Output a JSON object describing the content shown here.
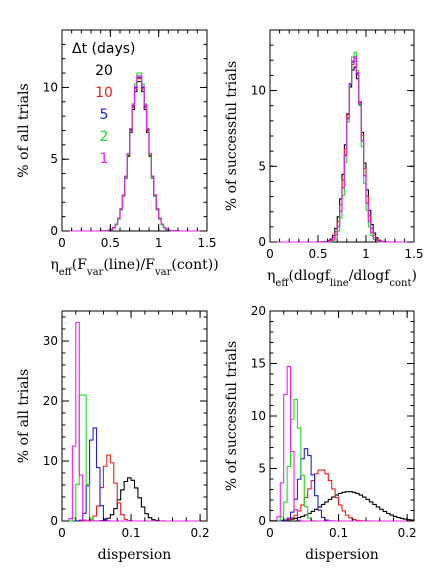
{
  "colors": {
    "20": "#000000",
    "10": "#ee1c1c",
    "5": "#2222dd",
    "2": "#22dd22",
    "1": "#ee22ee"
  },
  "legend": {
    "title": "Δt (days)",
    "entries": [
      {
        "label": "20",
        "series": "20"
      },
      {
        "label": "10",
        "series": "10"
      },
      {
        "label": "5",
        "series": "5"
      },
      {
        "label": "2",
        "series": "2"
      },
      {
        "label": "1",
        "series": "1"
      }
    ]
  },
  "chart_data": [
    {
      "type": "histogram",
      "panel": "top-left",
      "xlabel": "η_eff(F_var(line)/F_var(cont))",
      "ylabel": "% of all trials",
      "xlim": [
        0,
        1.5
      ],
      "ylim": [
        0,
        14
      ],
      "xticks": [
        0,
        0.5,
        1,
        1.5
      ],
      "xtick_labels": [
        "0",
        "0.5",
        "1",
        "1.5"
      ],
      "yticks": [
        0,
        5,
        10
      ],
      "ytick_labels": [
        "0",
        "5",
        "10"
      ],
      "bin_width": 0.025,
      "series": [
        {
          "name": "20",
          "center": 0.8,
          "sigma": 0.095,
          "peak": 10.5
        },
        {
          "name": "10",
          "center": 0.8,
          "sigma": 0.095,
          "peak": 10.7
        },
        {
          "name": "5",
          "center": 0.8,
          "sigma": 0.095,
          "peak": 10.8
        },
        {
          "name": "2",
          "center": 0.8,
          "sigma": 0.093,
          "peak": 11.1
        },
        {
          "name": "1",
          "center": 0.8,
          "sigma": 0.095,
          "peak": 10.9
        }
      ]
    },
    {
      "type": "histogram",
      "panel": "top-right",
      "xlabel": "η_eff(dlogf_line/dlogf_cont)",
      "ylabel": "% of successful trials",
      "xlim": [
        0,
        1.5
      ],
      "ylim": [
        0,
        14
      ],
      "xticks": [
        0,
        0.5,
        1,
        1.5
      ],
      "xtick_labels": [
        "0",
        "0.5",
        "1",
        "1.5"
      ],
      "yticks": [
        0,
        5,
        10
      ],
      "ytick_labels": [
        "0",
        "5",
        "10"
      ],
      "bin_width": 0.025,
      "series": [
        {
          "name": "20",
          "center": 0.88,
          "sigma": 0.085,
          "peak": 11.6
        },
        {
          "name": "10",
          "center": 0.88,
          "sigma": 0.08,
          "peak": 12.0
        },
        {
          "name": "5",
          "center": 0.88,
          "sigma": 0.075,
          "peak": 12.2
        },
        {
          "name": "2",
          "center": 0.88,
          "sigma": 0.07,
          "peak": 12.6
        },
        {
          "name": "1",
          "center": 0.88,
          "sigma": 0.075,
          "peak": 12.3
        }
      ]
    },
    {
      "type": "histogram",
      "panel": "bottom-left",
      "xlabel": "dispersion",
      "ylabel": "% of all trials",
      "xlim": [
        0,
        0.21
      ],
      "ylim": [
        0,
        35
      ],
      "xticks": [
        0,
        0.1,
        0.2
      ],
      "xtick_labels": [
        "0",
        "0.1",
        "0.2"
      ],
      "yticks": [
        0,
        10,
        20,
        30
      ],
      "ytick_labels": [
        "0",
        "10",
        "20",
        "30"
      ],
      "bin_width": 0.005,
      "series": [
        {
          "name": "20",
          "center": 0.098,
          "sigma": 0.013,
          "peak": 7.2
        },
        {
          "name": "10",
          "center": 0.068,
          "sigma": 0.009,
          "peak": 11.0
        },
        {
          "name": "5",
          "center": 0.046,
          "sigma": 0.006,
          "peak": 16.0
        },
        {
          "name": "2",
          "center": 0.03,
          "sigma": 0.0045,
          "peak": 24.5
        },
        {
          "name": "1",
          "center": 0.022,
          "sigma": 0.0032,
          "peak": 33.5
        }
      ]
    },
    {
      "type": "histogram",
      "panel": "bottom-right",
      "xlabel": "dispersion",
      "ylabel": "% of successful trials",
      "xlim": [
        0,
        0.21
      ],
      "ylim": [
        0,
        20
      ],
      "xticks": [
        0,
        0.1,
        0.2
      ],
      "xtick_labels": [
        "0",
        "0.1",
        "0.2"
      ],
      "yticks": [
        0,
        5,
        10,
        15,
        20
      ],
      "ytick_labels": [
        "0",
        "5",
        "10",
        "15",
        "20"
      ],
      "bin_width": 0.005,
      "series": [
        {
          "name": "20",
          "center": 0.115,
          "sigma": 0.035,
          "peak": 2.8
        },
        {
          "name": "10",
          "center": 0.075,
          "sigma": 0.018,
          "peak": 4.9
        },
        {
          "name": "5",
          "center": 0.053,
          "sigma": 0.01,
          "peak": 6.9
        },
        {
          "name": "2",
          "center": 0.037,
          "sigma": 0.0075,
          "peak": 11.6
        },
        {
          "name": "1",
          "center": 0.026,
          "sigma": 0.005,
          "peak": 15.4
        }
      ]
    }
  ]
}
